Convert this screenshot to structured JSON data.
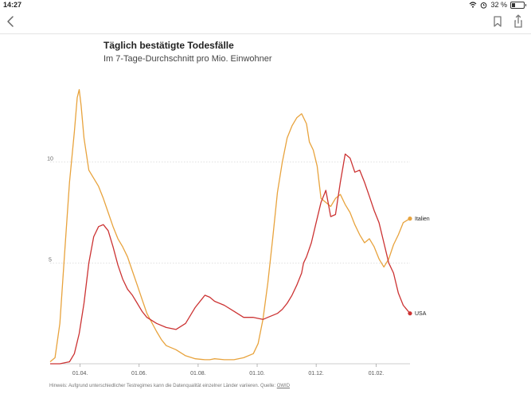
{
  "status_bar": {
    "time": "14:27",
    "battery_percent": "32 %",
    "battery_level": 0.32,
    "icons": [
      "wifi-icon",
      "alarm-icon",
      "battery-icon"
    ]
  },
  "nav": {
    "icons": [
      "chevron-left-icon",
      "bookmark-icon",
      "share-icon"
    ]
  },
  "chart": {
    "title": "Täglich bestätigte Todesfälle",
    "subtitle": "Im 7-Tage-Durchschnitt pro Mio. Einwohner"
  },
  "footnote": {
    "text": "Hinweis: Aufgrund unterschiedlicher Testregimes kann die Datenqualität einzelner Länder variieren. Quelle: ",
    "link": "OWID"
  },
  "chart_data": {
    "type": "line",
    "title": "Täglich bestätigte Todesfälle",
    "subtitle": "Im 7-Tage-Durchschnitt pro Mio. Einwohner",
    "xlabel": "",
    "ylabel": "",
    "x_unit": "days since 01.03.2020",
    "xlim": [
      0,
      372
    ],
    "ylim": [
      0,
      13.5
    ],
    "grid": true,
    "x_ticks": [
      {
        "day": 31,
        "label": "01.04."
      },
      {
        "day": 92,
        "label": "01.06."
      },
      {
        "day": 153,
        "label": "01.08."
      },
      {
        "day": 214,
        "label": "01.10."
      },
      {
        "day": 275,
        "label": "01.12."
      },
      {
        "day": 337,
        "label": "01.02."
      }
    ],
    "y_ticks": [
      {
        "value": 5,
        "label": "5"
      },
      {
        "value": 10,
        "label": "10"
      }
    ],
    "series": [
      {
        "name": "Italien",
        "color": "#e8a33d",
        "x": [
          0,
          5,
          10,
          15,
          20,
          25,
          28,
          30,
          32,
          35,
          40,
          45,
          50,
          55,
          60,
          65,
          70,
          75,
          80,
          85,
          90,
          95,
          100,
          110,
          115,
          120,
          130,
          140,
          150,
          160,
          165,
          170,
          180,
          190,
          200,
          210,
          215,
          220,
          225,
          230,
          235,
          240,
          245,
          250,
          255,
          260,
          265,
          268,
          272,
          276,
          278,
          280,
          285,
          290,
          295,
          300,
          305,
          310,
          315,
          320,
          325,
          330,
          335,
          340,
          345,
          350,
          355,
          360,
          365,
          372
        ],
        "y": [
          0.1,
          0.3,
          2.0,
          5.5,
          9.0,
          11.5,
          13.2,
          13.6,
          12.8,
          11.2,
          9.6,
          9.2,
          8.8,
          8.2,
          7.5,
          6.8,
          6.2,
          5.8,
          5.3,
          4.6,
          3.9,
          3.2,
          2.5,
          1.6,
          1.2,
          0.9,
          0.7,
          0.4,
          0.25,
          0.2,
          0.2,
          0.25,
          0.2,
          0.2,
          0.3,
          0.5,
          1.0,
          2.2,
          4.0,
          6.2,
          8.5,
          10.0,
          11.2,
          11.8,
          12.2,
          12.4,
          11.9,
          11.0,
          10.6,
          9.8,
          9.0,
          8.2,
          8.0,
          7.8,
          8.2,
          8.4,
          7.9,
          7.5,
          6.9,
          6.4,
          6.0,
          6.2,
          5.8,
          5.2,
          4.8,
          5.2,
          5.9,
          6.4,
          7.0,
          7.2
        ]
      },
      {
        "name": "USA",
        "color": "#cc3333",
        "x": [
          0,
          10,
          15,
          20,
          25,
          30,
          35,
          40,
          45,
          50,
          55,
          60,
          65,
          70,
          75,
          80,
          85,
          90,
          95,
          100,
          110,
          120,
          130,
          140,
          150,
          160,
          165,
          170,
          180,
          190,
          200,
          210,
          220,
          225,
          230,
          235,
          240,
          245,
          250,
          255,
          260,
          262,
          265,
          270,
          275,
          280,
          285,
          290,
          295,
          300,
          305,
          310,
          315,
          320,
          325,
          330,
          335,
          340,
          345,
          350,
          355,
          360,
          365,
          372
        ],
        "y": [
          0.0,
          0.0,
          0.05,
          0.1,
          0.5,
          1.5,
          3.0,
          5.0,
          6.3,
          6.8,
          6.9,
          6.6,
          5.8,
          4.9,
          4.2,
          3.7,
          3.4,
          3.0,
          2.6,
          2.3,
          2.0,
          1.8,
          1.7,
          2.0,
          2.8,
          3.4,
          3.3,
          3.1,
          2.9,
          2.6,
          2.3,
          2.3,
          2.2,
          2.3,
          2.4,
          2.5,
          2.7,
          3.0,
          3.4,
          3.9,
          4.5,
          5.0,
          5.3,
          6.0,
          7.0,
          8.0,
          8.6,
          7.3,
          7.4,
          9.0,
          10.4,
          10.2,
          9.5,
          9.6,
          9.0,
          8.3,
          7.6,
          7.0,
          6.0,
          5.0,
          4.5,
          3.5,
          2.9,
          2.5
        ]
      }
    ]
  }
}
